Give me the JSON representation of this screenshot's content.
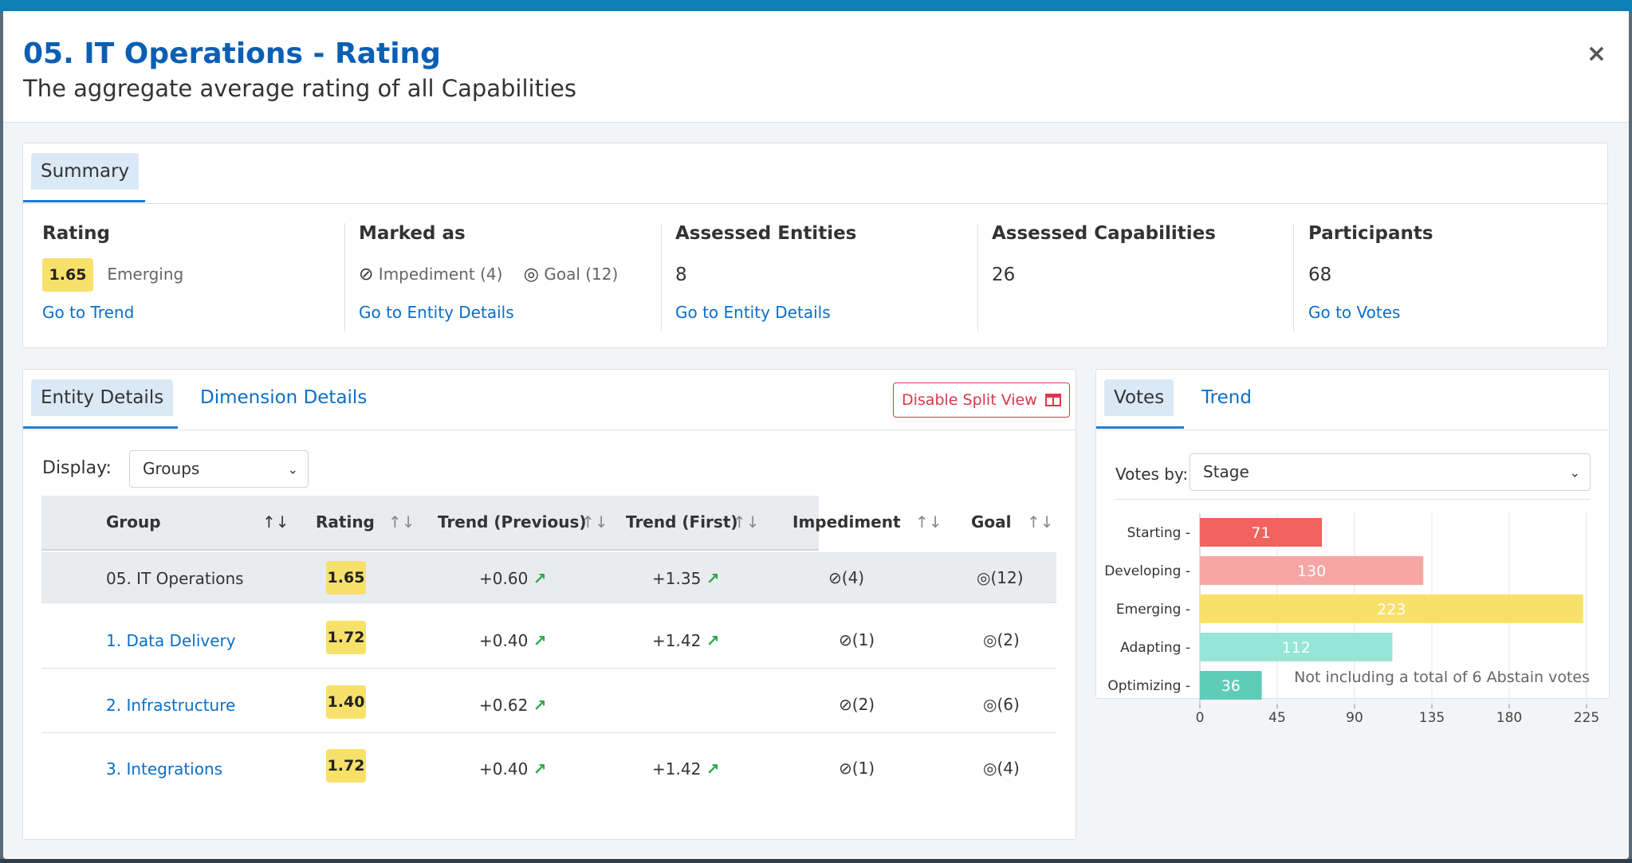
{
  "modal": {
    "title": "05. IT Operations - Rating",
    "subtitle": "The aggregate average rating of all Capabilities",
    "close_label": "×"
  },
  "summary": {
    "tab_label": "Summary",
    "rating": {
      "label": "Rating",
      "value": "1.65",
      "stage": "Emerging",
      "link": "Go to Trend"
    },
    "marked_as": {
      "label": "Marked as",
      "impediment": "Impediment (4)",
      "goal": "Goal (12)",
      "link": "Go to Entity Details"
    },
    "assessed_entities": {
      "label": "Assessed Entities",
      "value": "8",
      "link": "Go to Entity Details"
    },
    "assessed_capabilities": {
      "label": "Assessed Capabilities",
      "value": "26"
    },
    "participants": {
      "label": "Participants",
      "value": "68",
      "link": "Go to Votes"
    }
  },
  "details": {
    "tabs": [
      "Entity Details",
      "Dimension Details"
    ],
    "split_button": "Disable Split View",
    "display_label": "Display:",
    "display_value": "Groups",
    "columns": [
      "Group",
      "Rating",
      "Trend (Previous)",
      "Trend (First)",
      "Impediment",
      "Goal"
    ],
    "rows": [
      {
        "group": "05. IT Operations",
        "rating": "1.65",
        "trend_prev": "+0.60",
        "trend_first": "+1.35",
        "impediment": "(4)",
        "goal": "(12)"
      },
      {
        "group": "1. Data Delivery",
        "rating": "1.72",
        "trend_prev": "+0.40",
        "trend_first": "+1.42",
        "impediment": "(1)",
        "goal": "(2)"
      },
      {
        "group": "2. Infrastructure",
        "rating": "1.40",
        "trend_prev": "+0.62",
        "trend_first": "",
        "impediment": "(2)",
        "goal": "(6)"
      },
      {
        "group": "3. Integrations",
        "rating": "1.72",
        "trend_prev": "+0.40",
        "trend_first": "+1.42",
        "impediment": "(1)",
        "goal": "(4)"
      }
    ]
  },
  "votes": {
    "tabs": [
      "Votes",
      "Trend"
    ],
    "votes_by_label": "Votes by:",
    "votes_by_value": "Stage",
    "footnote": "Not including a total of 6 Abstain votes"
  },
  "chart_data": {
    "type": "bar",
    "orientation": "horizontal",
    "categories": [
      "Starting",
      "Developing",
      "Emerging",
      "Adapting",
      "Optimizing"
    ],
    "values": [
      71,
      130,
      223,
      112,
      36
    ],
    "colors": [
      "#f2625f",
      "#f6a5a5",
      "#f7e16b",
      "#95e6d6",
      "#5ecdb8"
    ],
    "x_ticks": [
      0,
      45,
      90,
      135,
      180,
      225
    ],
    "xlim": [
      0,
      225
    ],
    "grid": true
  },
  "colors": {
    "accent": "#0a6fc8",
    "title": "#0a5fb4",
    "rating_pill": "#f7e16b",
    "trend_up": "#2aa84a",
    "danger": "#d9384b"
  }
}
